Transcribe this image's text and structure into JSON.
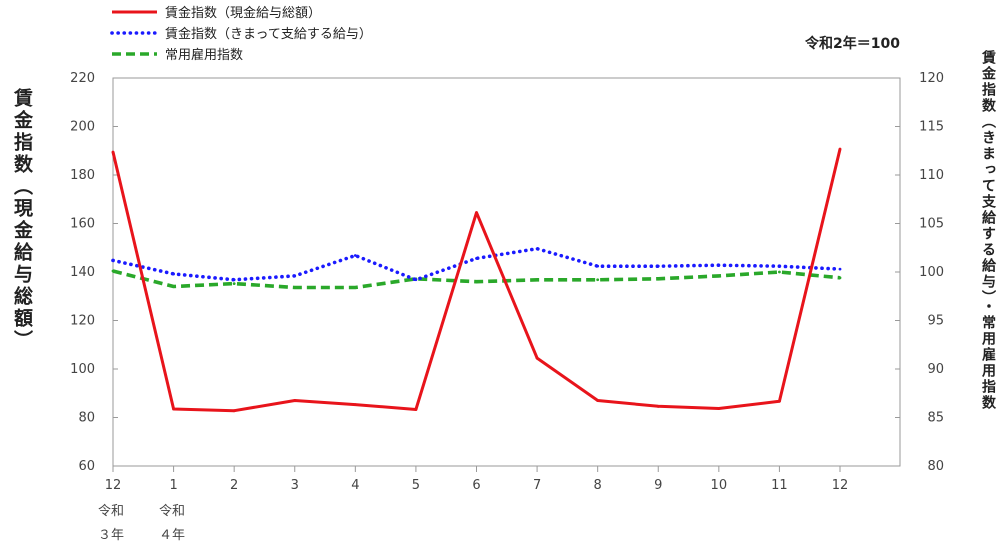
{
  "chart_data": {
    "type": "line",
    "categories": [
      "12",
      "1",
      "2",
      "3",
      "4",
      "5",
      "6",
      "7",
      "8",
      "9",
      "10",
      "11",
      "12"
    ],
    "era_labels": [
      {
        "category_index": 0,
        "lines": [
          "令和",
          "３年"
        ]
      },
      {
        "category_index": 1,
        "lines": [
          "令和",
          "４年"
        ]
      }
    ],
    "note": "令和2年＝100",
    "left_axis": {
      "label": "賃金指数（現金給与総額）",
      "ylim": [
        60,
        220
      ],
      "ticks": [
        60,
        80,
        100,
        120,
        140,
        160,
        180,
        200,
        220
      ]
    },
    "right_axis": {
      "label": "賃金指数（きまって支給する給与）・常用雇用指数",
      "ylim": [
        80,
        120
      ],
      "ticks": [
        80,
        85,
        90,
        95,
        100,
        105,
        110,
        115,
        120
      ]
    },
    "series": [
      {
        "name": "賃金指数（現金給与総額）",
        "axis": "left",
        "style": "solid",
        "color": "#e8141b",
        "values": [
          189.5,
          83.5,
          82.8,
          87.0,
          85.3,
          83.3,
          164.5,
          104.5,
          87.0,
          84.6,
          83.7,
          86.7,
          190.7
        ]
      },
      {
        "name": "賃金指数（きまって支給する給与）",
        "axis": "right",
        "style": "dotted",
        "color": "#1a1aff",
        "values": [
          101.2,
          99.8,
          99.2,
          99.6,
          101.7,
          99.2,
          101.4,
          102.4,
          100.6,
          100.6,
          100.7,
          100.6,
          100.3
        ]
      },
      {
        "name": "常用雇用指数",
        "axis": "right",
        "style": "dashed",
        "color": "#2aa82a",
        "values": [
          100.1,
          98.5,
          98.8,
          98.4,
          98.4,
          99.3,
          99.0,
          99.2,
          99.2,
          99.3,
          99.6,
          100.0,
          99.4
        ]
      }
    ],
    "grid": false,
    "legend_position": "top-left"
  }
}
